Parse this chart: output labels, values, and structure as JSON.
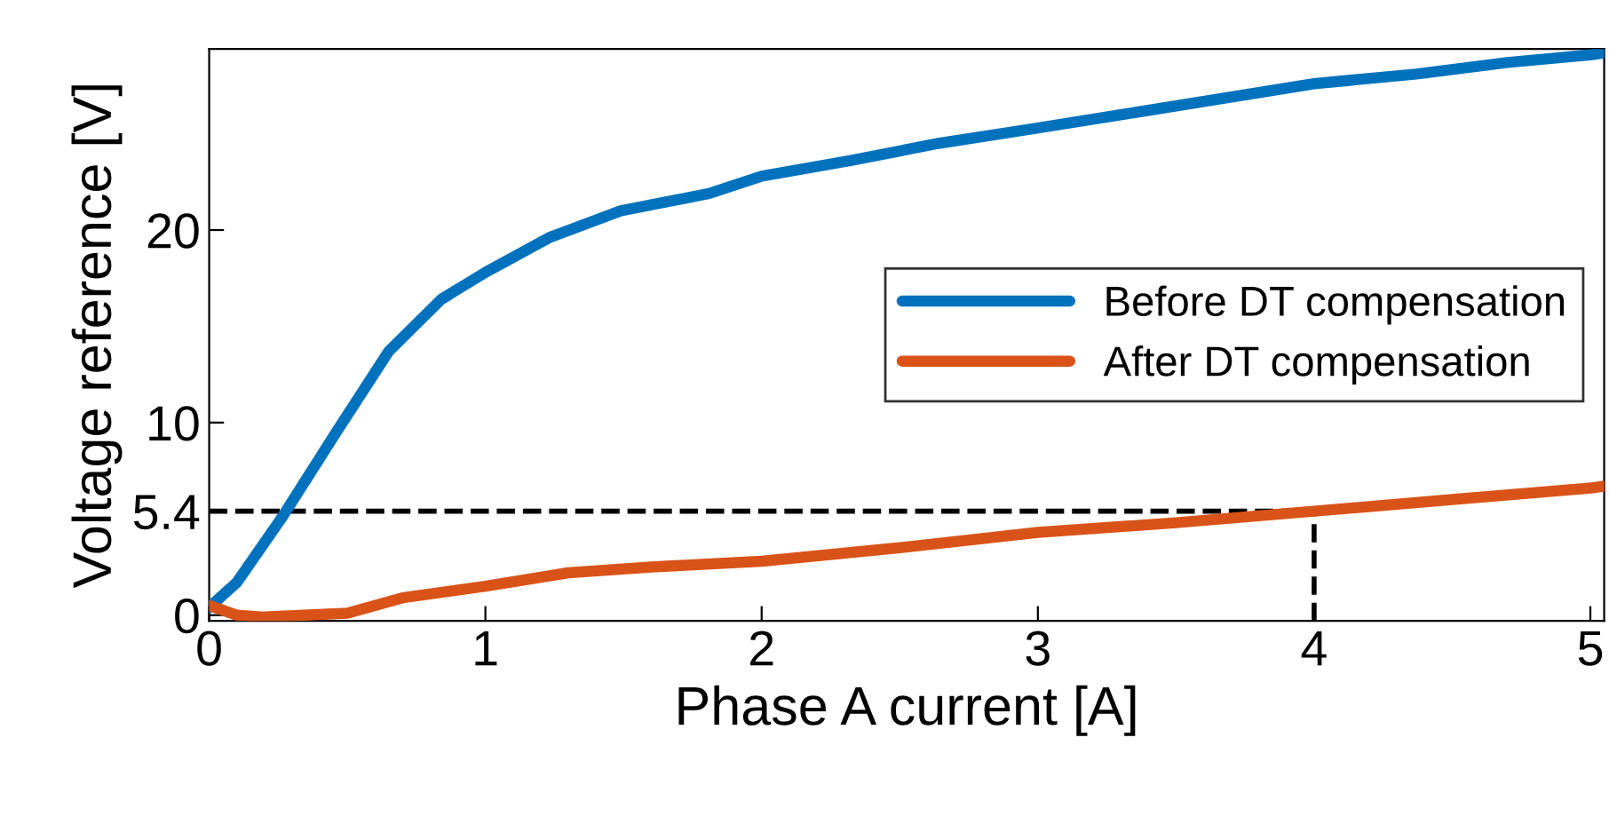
{
  "chart_data": {
    "type": "line",
    "xlabel": "Phase A current [A]",
    "ylabel": "Voltage reference [V]",
    "xlim": [
      0,
      5.05
    ],
    "ylim": [
      -0.3,
      29.4
    ],
    "xticks": [
      0,
      1,
      2,
      3,
      4,
      5
    ],
    "yticks": [
      0,
      5.4,
      10,
      20
    ],
    "grid": false,
    "legend": "center right",
    "line_style": "solid",
    "marker": "none",
    "series": [
      {
        "name": "Before DT compensation",
        "color": "#0072bd",
        "x": [
          0,
          0.1,
          0.26,
          0.46,
          0.65,
          0.84,
          1,
          1.23,
          1.49,
          1.81,
          2,
          2.32,
          2.64,
          3,
          3.35,
          3.74,
          4,
          4.37,
          4.7,
          5,
          5.05
        ],
        "values": [
          0.4,
          1.7,
          5,
          9.5,
          13.7,
          16.4,
          17.8,
          19.6,
          21,
          21.9,
          22.8,
          23.6,
          24.5,
          25.3,
          26.1,
          27,
          27.6,
          28.1,
          28.7,
          29.1,
          29.2
        ]
      },
      {
        "name": "After DT compensation",
        "color": "#d95319",
        "x": [
          0,
          0.1,
          0.2,
          0.5,
          0.7,
          1,
          1.3,
          1.6,
          2,
          2.5,
          3,
          3.5,
          4,
          4.5,
          5,
          5.05
        ],
        "values": [
          0.5,
          0,
          -0.1,
          0.1,
          0.9,
          1.5,
          2.2,
          2.5,
          2.8,
          3.5,
          4.3,
          4.8,
          5.4,
          6,
          6.6,
          6.7
        ]
      }
    ],
    "ref_lines": [
      {
        "axis": "y",
        "value": 5.4,
        "color": "#000000",
        "line_style": "dashed"
      },
      {
        "axis": "x",
        "value": 4,
        "color": "#000000",
        "line_style": "dashed"
      }
    ]
  }
}
